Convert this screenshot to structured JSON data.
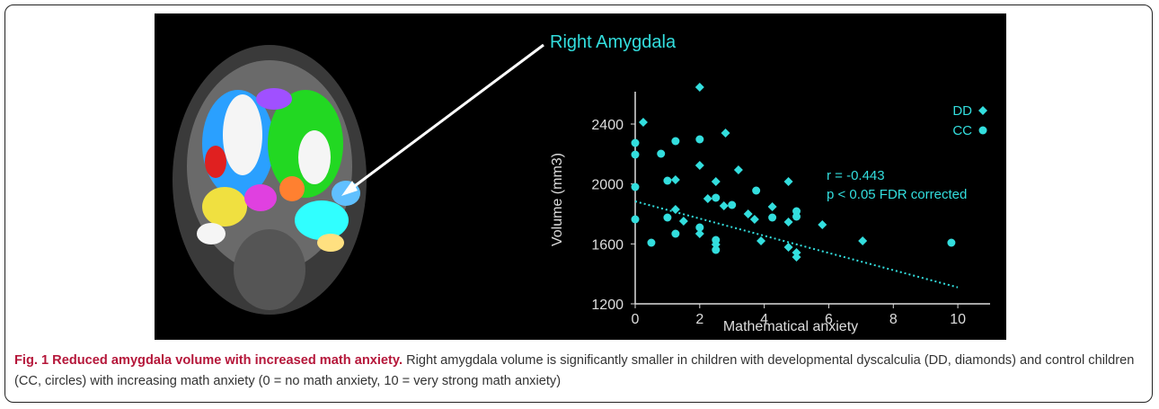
{
  "chart_data": {
    "type": "scatter",
    "title": "Right Amygdala",
    "x_label": "Mathematical anxiety",
    "y_label": "Volume (mm3)",
    "xlim": [
      0,
      11
    ],
    "ylim": [
      1200,
      2700
    ],
    "xticks": [
      0,
      2,
      4,
      6,
      8,
      10
    ],
    "yticks": [
      1200,
      1600,
      2000,
      2400
    ],
    "series": [
      {
        "name": "DD",
        "marker": "diamond",
        "color": "#33dede",
        "x": [
          0.25,
          2.0,
          2.8,
          2.0,
          3.2,
          2.5,
          4.75,
          1.25,
          2.25,
          2.75,
          1.25,
          3.5,
          1.5,
          4.25,
          3.7,
          5.8,
          4.75,
          2.0,
          3.9,
          2.5,
          4.75,
          5.0,
          5.0,
          7.05
        ],
        "values": [
          2412,
          2646,
          2340,
          2124,
          2094,
          2016,
          2016,
          2028,
          1902,
          1854,
          1830,
          1800,
          1752,
          1848,
          1764,
          1728,
          1746,
          1668,
          1620,
          1596,
          1578,
          1542,
          1512,
          1620
        ]
      },
      {
        "name": "CC",
        "marker": "circle",
        "color": "#33dede",
        "x": [
          0,
          0,
          0,
          0,
          0.8,
          1.25,
          2.0,
          1.0,
          1.0,
          1.25,
          0.5,
          2.0,
          2.5,
          2.5,
          3.0,
          3.75,
          4.25,
          5.0,
          5.0,
          9.8,
          2.5
        ],
        "values": [
          2274,
          2196,
          1980,
          1764,
          2202,
          2286,
          2298,
          2022,
          1776,
          1668,
          1608,
          1710,
          1626,
          1560,
          1860,
          1956,
          1776,
          1818,
          1782,
          1608,
          1908
        ]
      }
    ],
    "trendline": {
      "x": [
        0,
        10
      ],
      "values": [
        1884,
        1310
      ]
    },
    "annotations": [
      "r = -0.443",
      "p < 0.05 FDR corrected"
    ]
  },
  "caption": {
    "label": "Fig. 1 Reduced amygdala volume with increased math anxiety.",
    "text": "Right amygdala volume is significantly smaller in children with developmental dyscalculia (DD, diamonds) and control children (CC, circles) with increasing math anxiety (0 = no math anxiety, 10 = very strong math anxiety)"
  }
}
